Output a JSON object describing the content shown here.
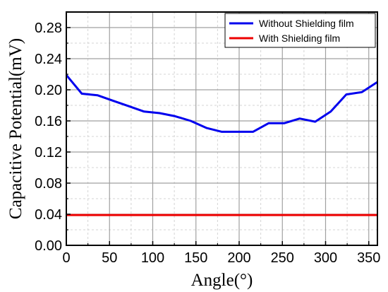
{
  "chart_data": {
    "type": "line",
    "title": "",
    "xlabel": "Angle(°)",
    "ylabel": "Capacitive Potential(mV)",
    "xlim": [
      0,
      360
    ],
    "ylim": [
      0,
      0.3
    ],
    "xticks": [
      0,
      50,
      100,
      150,
      200,
      250,
      300,
      350
    ],
    "xtick_labels": [
      "0",
      "50",
      "100",
      "150",
      "200",
      "250",
      "300",
      "350"
    ],
    "yticks": [
      0,
      0.04,
      0.08,
      0.12,
      0.16,
      0.2,
      0.24,
      0.28
    ],
    "ytick_labels": [
      "0.00",
      "0.04",
      "0.08",
      "0.12",
      "0.16",
      "0.20",
      "0.24",
      "0.28"
    ],
    "grid": true,
    "legend_position": "top-right",
    "series": [
      {
        "name": "Without Shielding film",
        "color": "#0000ee",
        "x": [
          0,
          18,
          36,
          54,
          72,
          90,
          108,
          126,
          144,
          162,
          180,
          198,
          216,
          234,
          252,
          270,
          288,
          306,
          324,
          342,
          360
        ],
        "y": [
          0.219,
          0.195,
          0.193,
          0.186,
          0.179,
          0.172,
          0.17,
          0.166,
          0.16,
          0.151,
          0.146,
          0.146,
          0.146,
          0.157,
          0.157,
          0.163,
          0.159,
          0.172,
          0.194,
          0.197,
          0.21
        ]
      },
      {
        "name": "With Shielding film",
        "color": "#ee0000",
        "x": [
          0,
          360
        ],
        "y": [
          0.039,
          0.039
        ]
      }
    ]
  }
}
